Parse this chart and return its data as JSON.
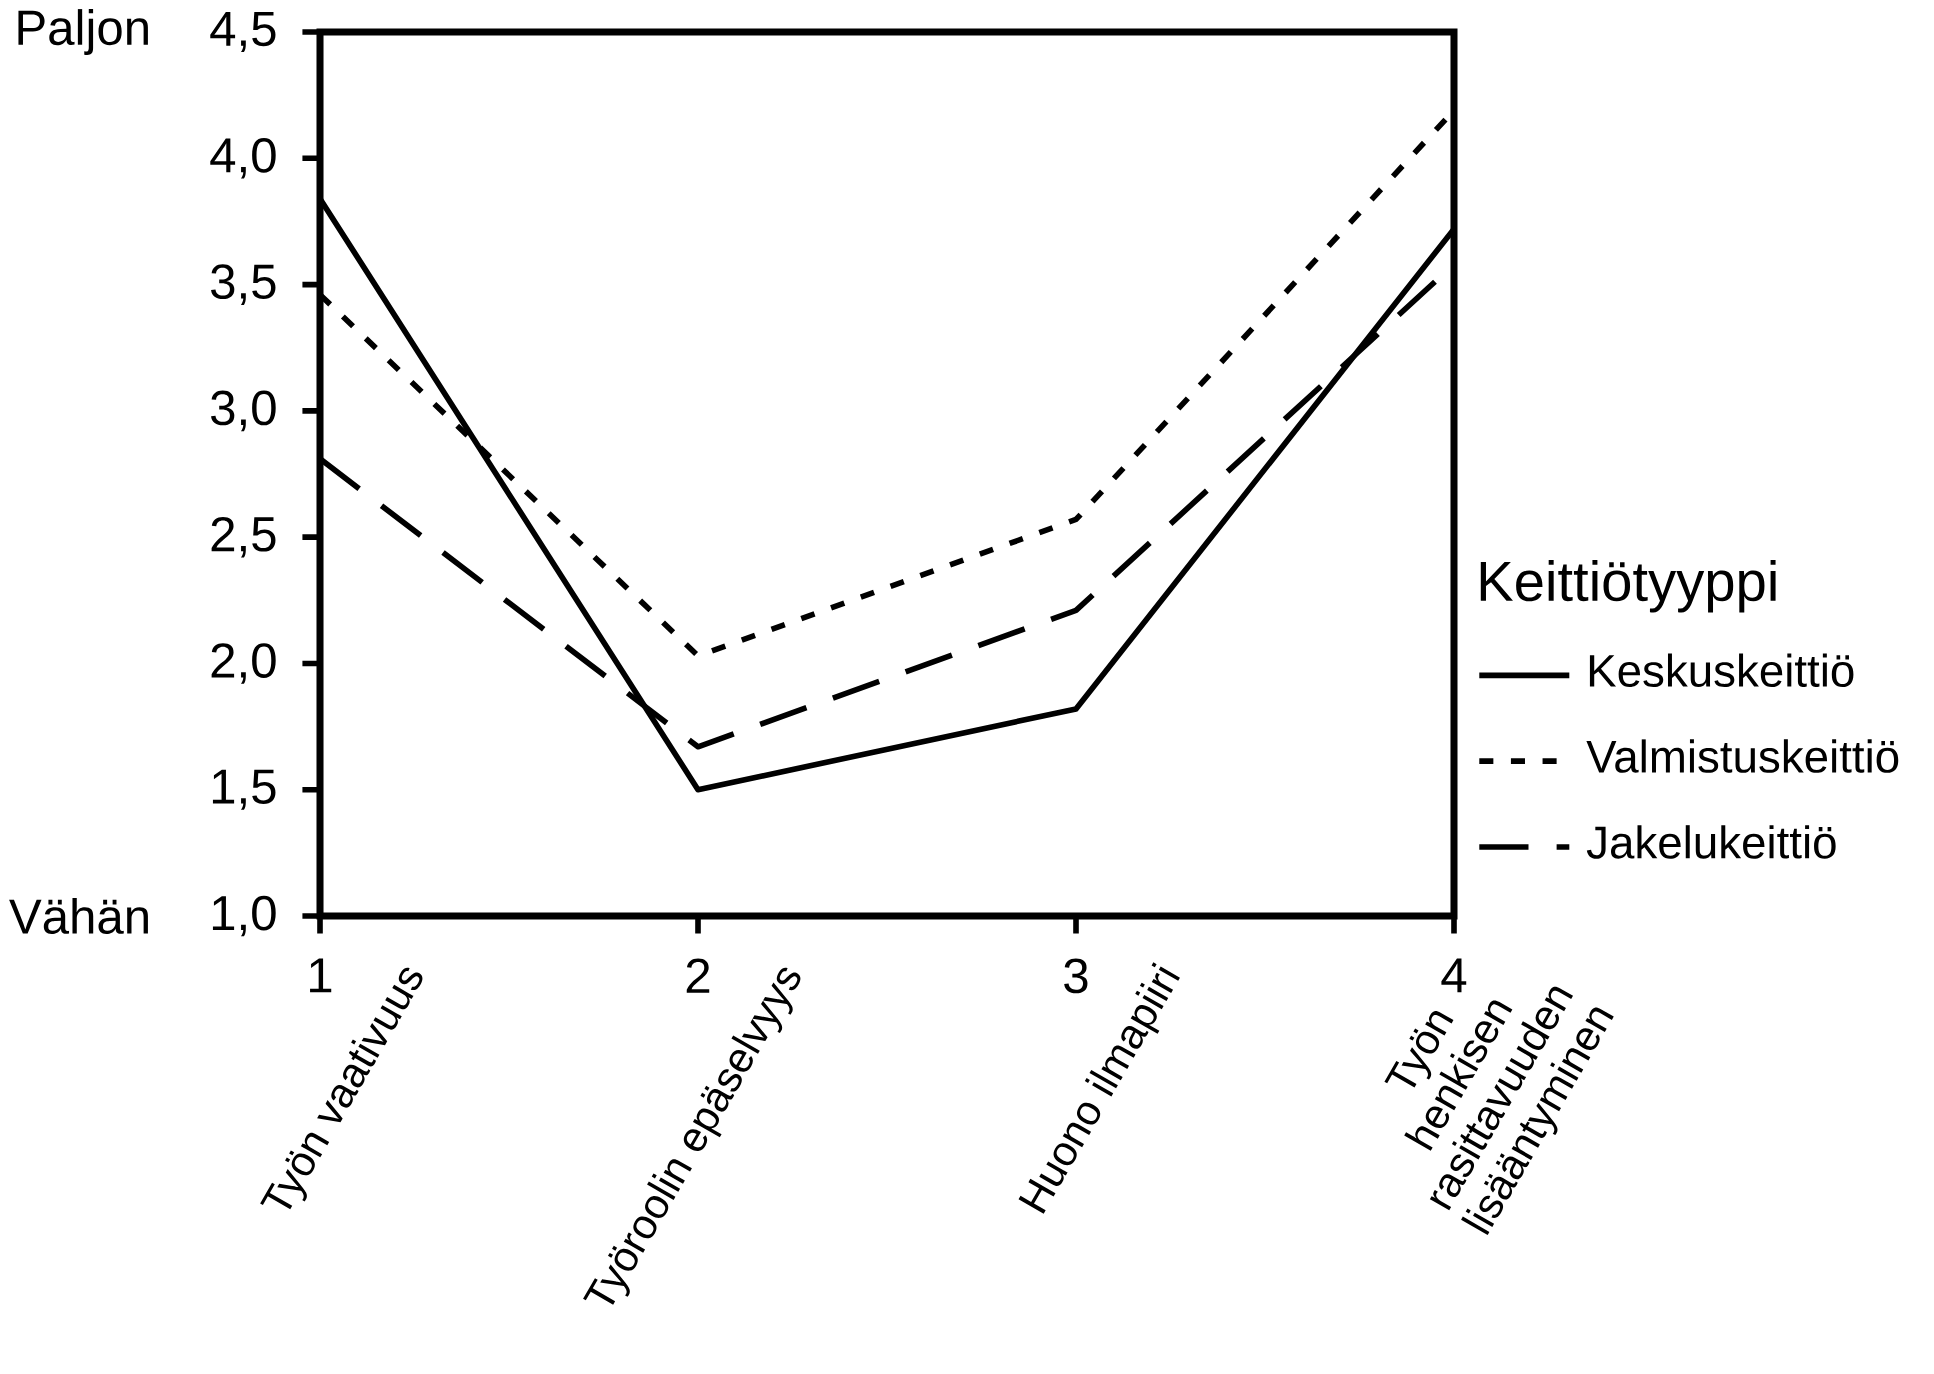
{
  "chart_data": {
    "type": "line",
    "x": [
      1,
      2,
      3,
      4
    ],
    "xlim": [
      1,
      4
    ],
    "xticks": [
      1,
      2,
      3,
      4
    ],
    "ylim": [
      1.0,
      4.5
    ],
    "yticks": [
      {
        "value": 1.0,
        "label": "1,0"
      },
      {
        "value": 1.5,
        "label": "1,5"
      },
      {
        "value": 2.0,
        "label": "2,0"
      },
      {
        "value": 2.5,
        "label": "2,5"
      },
      {
        "value": 3.0,
        "label": "3,0"
      },
      {
        "value": 3.5,
        "label": "3,5"
      },
      {
        "value": 4.0,
        "label": "4,0"
      },
      {
        "value": 4.5,
        "label": "4,5"
      }
    ],
    "legend_title": "Keittiötyyppi",
    "legend": "right",
    "grid": false,
    "marker": "none",
    "series": [
      {
        "name": "Keskuskeittiö",
        "color": "#000000",
        "line_style": "solid",
        "values": [
          3.84,
          1.5,
          1.82,
          3.72
        ]
      },
      {
        "name": "Valmistuskeittiö",
        "color": "#000000",
        "line_style": "dotted",
        "values": [
          3.46,
          2.03,
          2.57,
          4.19
        ]
      },
      {
        "name": "Jakelukeittiö",
        "color": "#000000",
        "line_style": "dashed",
        "values": [
          2.81,
          1.67,
          2.21,
          3.58
        ]
      }
    ],
    "annotations": [
      "Paljon",
      "Vähän",
      "Työn vaativuus",
      "Työroolin epäselvyys",
      "Huono ilmapiiri",
      "Työn henkisen rasittavuuden lisääntyminen"
    ]
  }
}
